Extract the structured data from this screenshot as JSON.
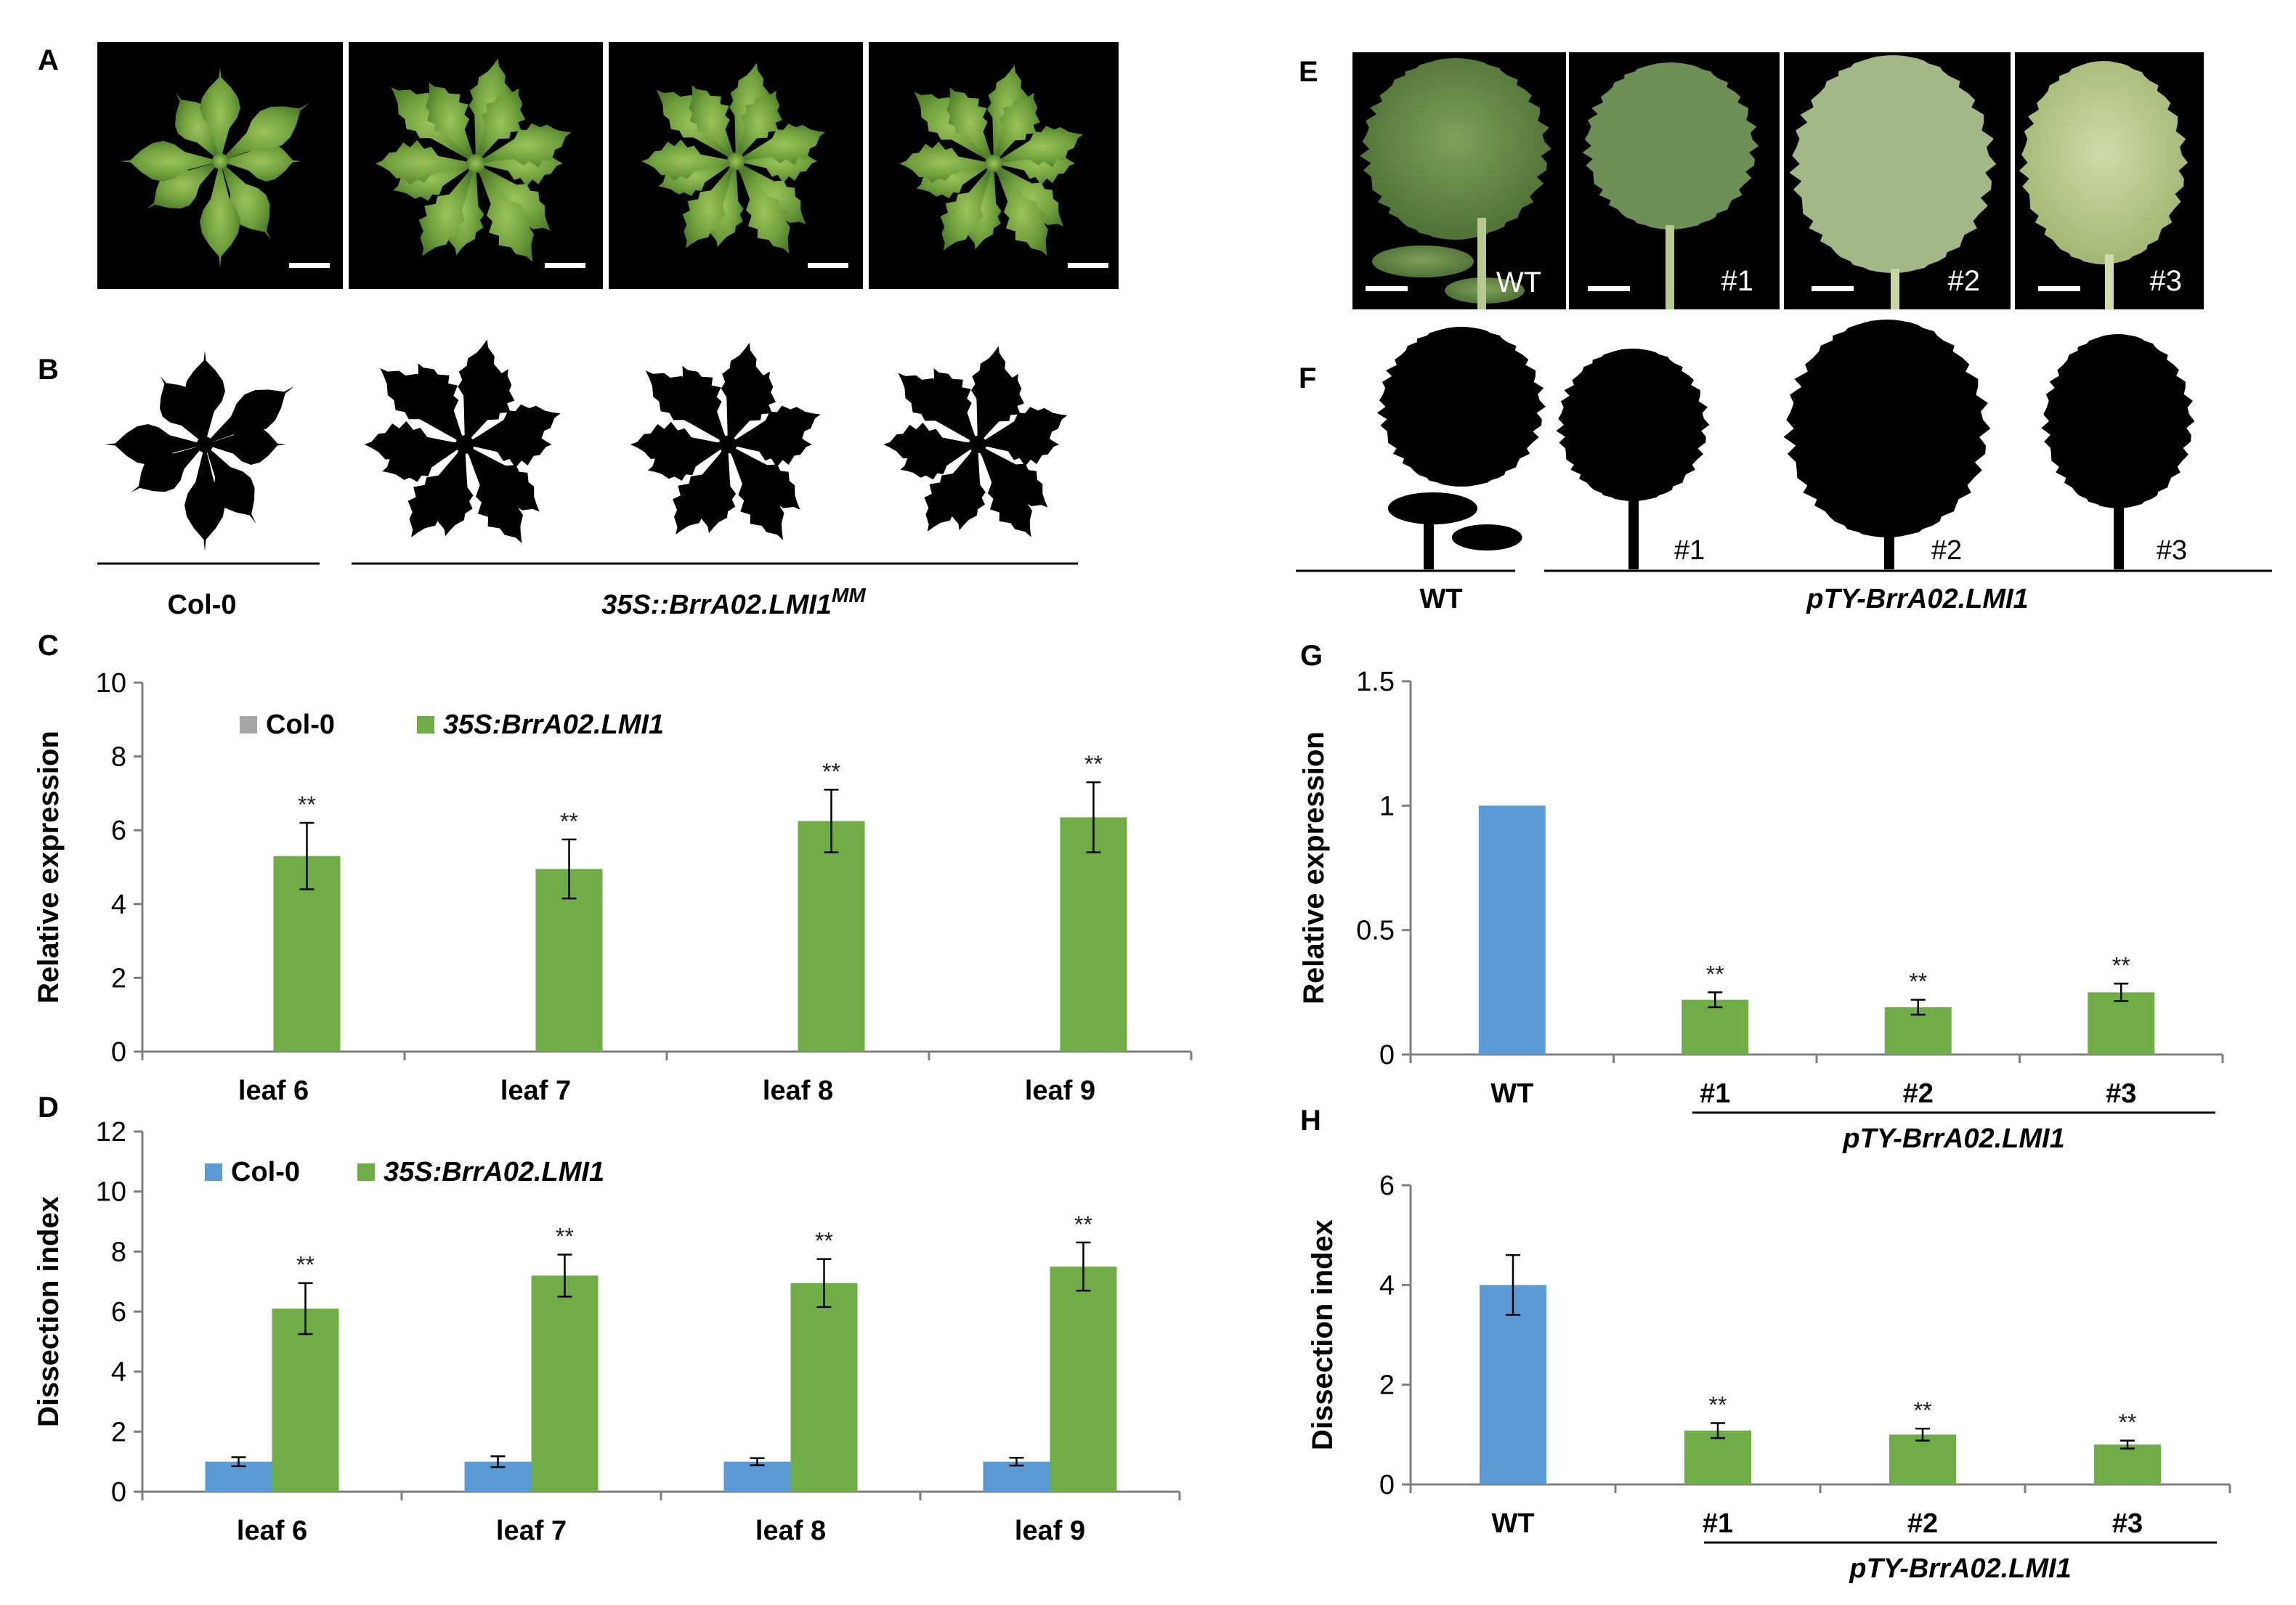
{
  "colors": {
    "green": "#70ad47",
    "blue": "#5b9bd5",
    "grey": "#a5a5a5",
    "plant_green": "#6f9f3c",
    "leaf_green": "#5c7f3f",
    "pale_leaf": "#b8c98f"
  },
  "panel_letters": [
    "A",
    "B",
    "C",
    "D",
    "E",
    "F",
    "G",
    "H"
  ],
  "panel_b": {
    "genotype_left": "Col-0",
    "genotype_right": "35S::BrrA02.LMI1",
    "genotype_right_sup": "MM"
  },
  "panel_e": {
    "labels": [
      "WT",
      "#1",
      "#2",
      "#3"
    ]
  },
  "panel_f": {
    "labels": [
      "#1",
      "#2",
      "#3"
    ],
    "genotype_left": "WT",
    "genotype_right": "pTY-BrrA02.LMI1"
  },
  "chart_data": [
    {
      "id": "C",
      "type": "bar",
      "ylabel": "Relative expression",
      "ylim": [
        0,
        10
      ],
      "yticks": [
        "0",
        "2",
        "4",
        "6",
        "8",
        "10"
      ],
      "categories": [
        "leaf 6",
        "leaf 7",
        "leaf 8",
        "leaf 9"
      ],
      "legend": [
        "Col-0",
        "35S:BrrA02.LMI1"
      ],
      "series": [
        {
          "name": "Col-0",
          "values": [
            0,
            0,
            0,
            0
          ],
          "errors": [
            0,
            0,
            0,
            0
          ]
        },
        {
          "name": "35S:BrrA02.LMI1",
          "values": [
            5.3,
            4.95,
            6.25,
            6.35
          ],
          "errors": [
            0.9,
            0.8,
            0.85,
            0.95
          ]
        }
      ],
      "significance": [
        "**",
        "**",
        "**",
        "**"
      ]
    },
    {
      "id": "D",
      "type": "bar",
      "ylabel": "Dissection index",
      "ylim": [
        0,
        12
      ],
      "yticks": [
        "0",
        "2",
        "4",
        "6",
        "8",
        "10",
        "12"
      ],
      "categories": [
        "leaf 6",
        "leaf 7",
        "leaf 8",
        "leaf 9"
      ],
      "legend": [
        "Col-0",
        "35S:BrrA02.LMI1"
      ],
      "series": [
        {
          "name": "Col-0",
          "values": [
            1.0,
            1.0,
            1.0,
            1.0
          ],
          "errors": [
            0.15,
            0.18,
            0.12,
            0.13
          ]
        },
        {
          "name": "35S:BrrA02.LMI1",
          "values": [
            6.1,
            7.2,
            6.95,
            7.5
          ],
          "errors": [
            0.85,
            0.7,
            0.8,
            0.8
          ]
        }
      ],
      "significance": [
        "**",
        "**",
        "**",
        "**"
      ]
    },
    {
      "id": "G",
      "type": "bar",
      "ylabel": "Relative expression",
      "ylim": [
        0,
        1.5
      ],
      "yticks": [
        "0",
        "0.5",
        "1",
        "1.5"
      ],
      "categories": [
        "WT",
        "#1",
        "#2",
        "#3"
      ],
      "group_label": "pTY-BrrA02.LMI1",
      "values": [
        1.0,
        0.22,
        0.19,
        0.25
      ],
      "errors": [
        0.0,
        0.03,
        0.03,
        0.035
      ],
      "bar_colors": [
        "blue",
        "green",
        "green",
        "green"
      ],
      "significance": [
        "",
        "**",
        "**",
        "**"
      ]
    },
    {
      "id": "H",
      "type": "bar",
      "ylabel": "Dissection index",
      "ylim": [
        0,
        6
      ],
      "yticks": [
        "0",
        "2",
        "4",
        "6"
      ],
      "categories": [
        "WT",
        "#1",
        "#2",
        "#3"
      ],
      "group_label": "pTY-BrrA02.LMI1",
      "values": [
        4.0,
        1.08,
        1.0,
        0.8
      ],
      "errors": [
        0.6,
        0.15,
        0.12,
        0.08
      ],
      "bar_colors": [
        "blue",
        "green",
        "green",
        "green"
      ],
      "significance": [
        "",
        "**",
        "**",
        "**"
      ]
    }
  ]
}
